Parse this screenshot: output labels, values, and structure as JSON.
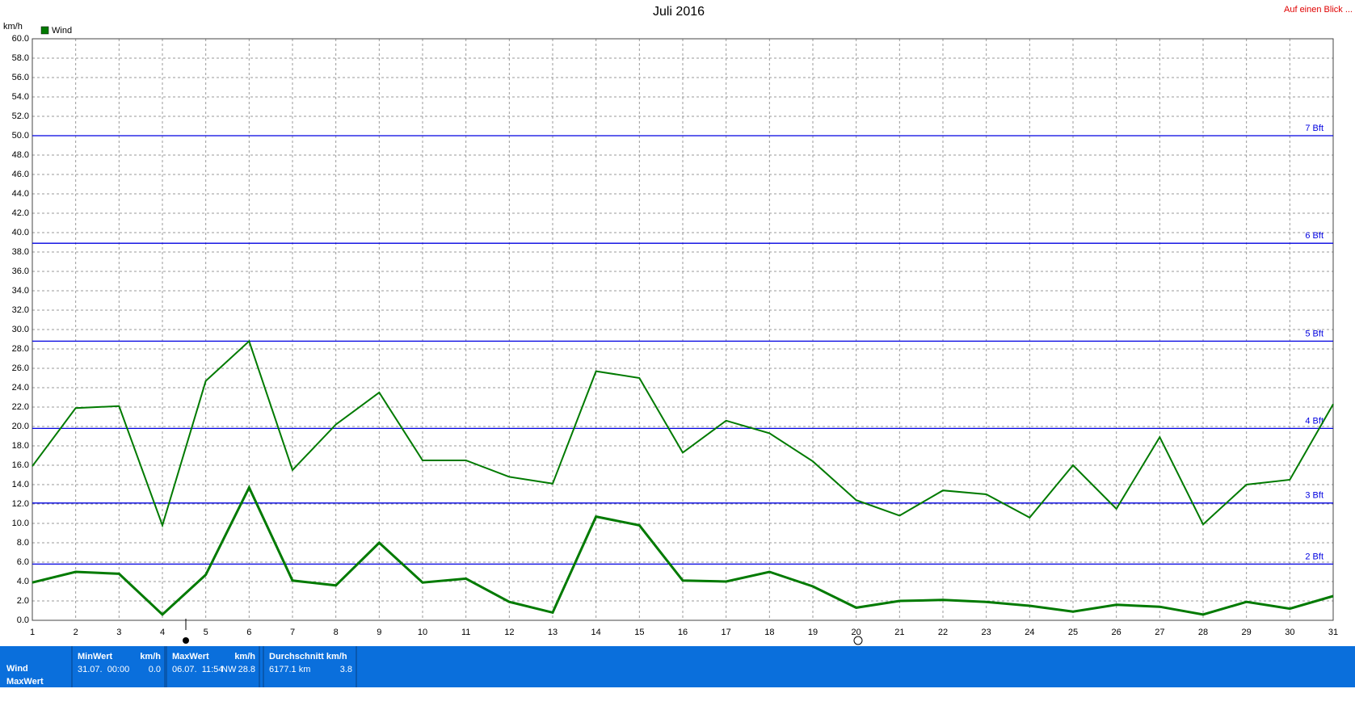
{
  "chart_data": {
    "type": "line",
    "title": "Juli 2016",
    "y_unit": "km/h",
    "corner_link": "Auf einen Blick ...",
    "x": [
      1,
      2,
      3,
      4,
      5,
      6,
      7,
      8,
      9,
      10,
      11,
      12,
      13,
      14,
      15,
      16,
      17,
      18,
      19,
      20,
      21,
      22,
      23,
      24,
      25,
      26,
      27,
      28,
      29,
      30,
      31
    ],
    "xlim": [
      1,
      31
    ],
    "xticks": [
      1,
      2,
      3,
      4,
      5,
      6,
      7,
      8,
      9,
      10,
      11,
      12,
      13,
      14,
      15,
      16,
      17,
      18,
      19,
      20,
      21,
      22,
      23,
      24,
      25,
      26,
      27,
      28,
      29,
      30,
      31
    ],
    "ylim": [
      0,
      60
    ],
    "yticks": [
      {
        "value": 0,
        "label": "0.0"
      },
      {
        "value": 2,
        "label": "2.0"
      },
      {
        "value": 4,
        "label": "4.0"
      },
      {
        "value": 6,
        "label": "6.0"
      },
      {
        "value": 8,
        "label": "8.0"
      },
      {
        "value": 10,
        "label": "10.0"
      },
      {
        "value": 12,
        "label": "12.0"
      },
      {
        "value": 14,
        "label": "14.0"
      },
      {
        "value": 16,
        "label": "16.0"
      },
      {
        "value": 18,
        "label": "18.0"
      },
      {
        "value": 20,
        "label": "20.0"
      },
      {
        "value": 22,
        "label": "22.0"
      },
      {
        "value": 24,
        "label": "24.0"
      },
      {
        "value": 26,
        "label": "26.0"
      },
      {
        "value": 28,
        "label": "28.0"
      },
      {
        "value": 30,
        "label": "30.0"
      },
      {
        "value": 32,
        "label": "32.0"
      },
      {
        "value": 34,
        "label": "34.0"
      },
      {
        "value": 36,
        "label": "36.0"
      },
      {
        "value": 38,
        "label": "38.0"
      },
      {
        "value": 40,
        "label": "40.0"
      },
      {
        "value": 42,
        "label": "42.0"
      },
      {
        "value": 44,
        "label": "44.0"
      },
      {
        "value": 46,
        "label": "46.0"
      },
      {
        "value": 48,
        "label": "48.0"
      },
      {
        "value": 50,
        "label": "50.0"
      },
      {
        "value": 52,
        "label": "52.0"
      },
      {
        "value": 54,
        "label": "54.0"
      },
      {
        "value": 56,
        "label": "56.0"
      },
      {
        "value": 58,
        "label": "58.0"
      },
      {
        "value": 60,
        "label": "60.0"
      }
    ],
    "grid": true,
    "series": [
      {
        "name": "Wind",
        "color": "#007a00",
        "values": [
          15.9,
          21.9,
          22.1,
          9.8,
          24.7,
          28.8,
          15.5,
          20.2,
          23.5,
          16.5,
          16.5,
          14.8,
          14.1,
          25.7,
          25.0,
          17.3,
          20.6,
          19.3,
          16.4,
          12.4,
          10.8,
          13.4,
          13.0,
          10.6,
          16.0,
          11.5,
          18.9,
          9.9,
          14.0,
          14.5,
          22.3
        ]
      },
      {
        "color": "#007a00",
        "values": [
          3.9,
          5.0,
          4.8,
          0.6,
          4.7,
          13.7,
          4.1,
          3.6,
          8.0,
          3.9,
          4.3,
          1.9,
          0.8,
          10.7,
          9.8,
          4.1,
          4.0,
          5.0,
          3.5,
          1.3,
          2.0,
          2.1,
          1.9,
          1.5,
          0.9,
          1.6,
          1.4,
          0.6,
          1.9,
          1.2,
          2.5
        ]
      }
    ],
    "reference_lines": [
      {
        "value": 5.8,
        "label": "2 Bft"
      },
      {
        "value": 12.1,
        "label": "3 Bft"
      },
      {
        "value": 19.8,
        "label": "4 Bft"
      },
      {
        "value": 28.8,
        "label": "5 Bft"
      },
      {
        "value": 38.9,
        "label": "6 Bft"
      },
      {
        "value": 50.0,
        "label": "7 Bft"
      }
    ],
    "reference_color": "#0000e0"
  },
  "summary": {
    "row_labels": [
      "Wind",
      "MaxWert"
    ],
    "cells": [
      {
        "header": "MinWert",
        "unit": "km/h",
        "when": "31.07.  00:00",
        "value": "0.0"
      },
      {
        "header": "MaxWert",
        "unit": "km/h",
        "when": "06.07.  11:54",
        "dir": "NW",
        "value": "28.8"
      },
      {
        "header": "Durchschnitt km/h",
        "when": "6177.1 km",
        "value": "3.8"
      }
    ]
  }
}
